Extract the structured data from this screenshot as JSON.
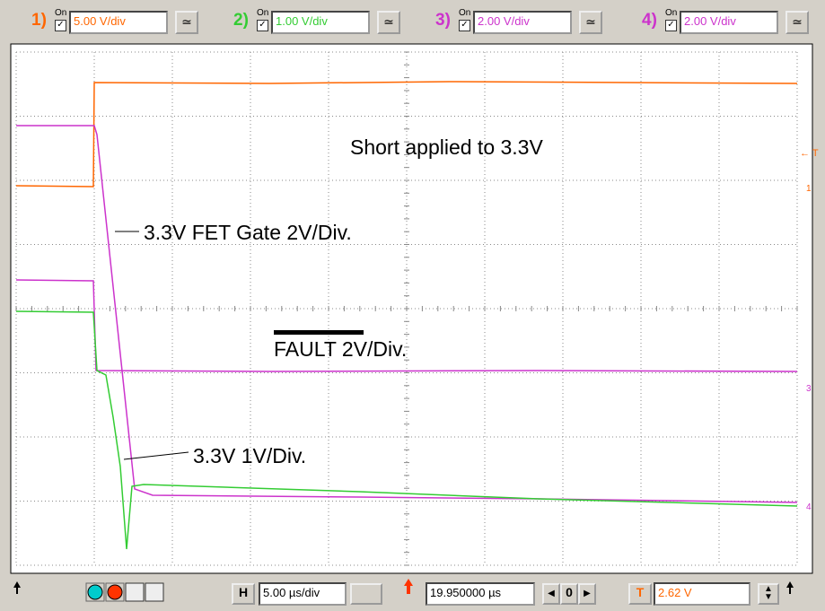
{
  "toolbar": {
    "channels": [
      {
        "number": "1)",
        "state": "On",
        "scale": "5.00 V/div",
        "color": "#ff6600"
      },
      {
        "number": "2)",
        "state": "On",
        "scale": "1.00 V/div",
        "color": "#33cc33"
      },
      {
        "number": "3)",
        "state": "On",
        "scale": "2.00 V/div",
        "color": "#cc33cc"
      },
      {
        "number": "4)",
        "state": "On",
        "scale": "2.00 V/div",
        "color": "#cc33cc"
      }
    ]
  },
  "annotations": [
    "Short applied to 3.3V",
    "3.3V FET Gate 2V/Div.",
    "FAULT 2V/Div.",
    "3.3V 1V/Div."
  ],
  "markers": [
    "← T",
    "1",
    "3",
    "4"
  ],
  "timebase": {
    "label": "H",
    "scale": "5.00 µs/div",
    "position": "19.950000 µs",
    "step": "0"
  },
  "trigger": {
    "label": "T",
    "level": "2.62 V"
  }
}
